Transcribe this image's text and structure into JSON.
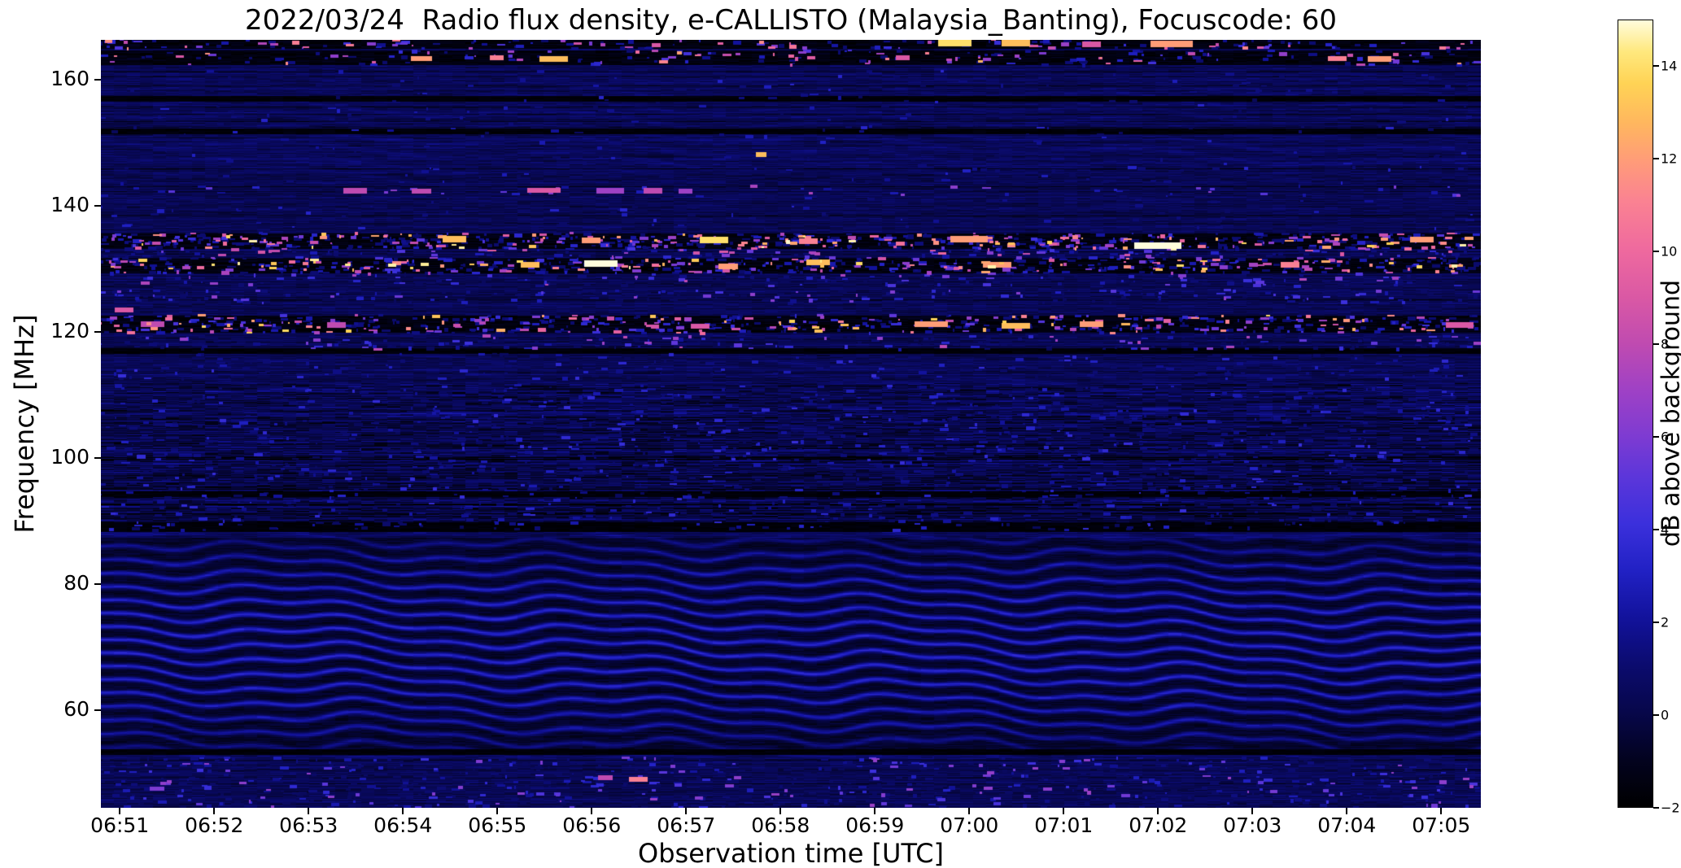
{
  "chart_data": {
    "type": "heatmap",
    "title": "2022/03/24  Radio flux density, e-CALLISTO (Malaysia_Banting), Focuscode: 60",
    "xlabel": "Observation time [UTC]",
    "ylabel": "Frequency [MHz]",
    "colorbar_label": "dB above background",
    "x_ticks": [
      {
        "label": "06:51",
        "t": 0
      },
      {
        "label": "06:52",
        "t": 1
      },
      {
        "label": "06:53",
        "t": 2
      },
      {
        "label": "06:54",
        "t": 3
      },
      {
        "label": "06:55",
        "t": 4
      },
      {
        "label": "06:56",
        "t": 5
      },
      {
        "label": "06:57",
        "t": 6
      },
      {
        "label": "06:58",
        "t": 7
      },
      {
        "label": "06:59",
        "t": 8
      },
      {
        "label": "07:00",
        "t": 9
      },
      {
        "label": "07:01",
        "t": 10
      },
      {
        "label": "07:02",
        "t": 11
      },
      {
        "label": "07:03",
        "t": 12
      },
      {
        "label": "07:04",
        "t": 13
      },
      {
        "label": "07:05",
        "t": 14
      }
    ],
    "y_ticks": [
      {
        "label": "60",
        "f": 60
      },
      {
        "label": "80",
        "f": 80
      },
      {
        "label": "100",
        "f": 100
      },
      {
        "label": "120",
        "f": 120
      },
      {
        "label": "140",
        "f": 140
      },
      {
        "label": "160",
        "f": 160
      }
    ],
    "colorbar_ticks": [
      {
        "label": "−2",
        "v": -2
      },
      {
        "label": "0",
        "v": 0
      },
      {
        "label": "2",
        "v": 2
      },
      {
        "label": "4",
        "v": 4
      },
      {
        "label": "6",
        "v": 6
      },
      {
        "label": "8",
        "v": 8
      },
      {
        "label": "10",
        "v": 10
      },
      {
        "label": "12",
        "v": 12
      },
      {
        "label": "14",
        "v": 14
      }
    ],
    "freq_range": [
      44.5,
      166.3
    ],
    "time_range_min": [
      -0.2,
      14.42
    ],
    "value_range": [
      -2,
      15
    ],
    "colorbar_range": [
      -2,
      15
    ],
    "colormap_stops": [
      [
        0.0,
        "#000000"
      ],
      [
        0.06,
        "#03031f"
      ],
      [
        0.12,
        "#07074a"
      ],
      [
        0.18,
        "#0b0b6e"
      ],
      [
        0.24,
        "#12129b"
      ],
      [
        0.3,
        "#2121c4"
      ],
      [
        0.36,
        "#3b30dc"
      ],
      [
        0.42,
        "#5c36da"
      ],
      [
        0.47,
        "#7d3bd2"
      ],
      [
        0.53,
        "#9f41c5"
      ],
      [
        0.59,
        "#c04bb0"
      ],
      [
        0.65,
        "#db59a4"
      ],
      [
        0.71,
        "#ef6a9e"
      ],
      [
        0.77,
        "#fa8292"
      ],
      [
        0.82,
        "#ff9b79"
      ],
      [
        0.87,
        "#ffb75e"
      ],
      [
        0.92,
        "#ffd355"
      ],
      [
        0.96,
        "#ffe87d"
      ],
      [
        1.0,
        "#fffcdc"
      ]
    ],
    "features_summary": [
      "Dark RFI lanes with intermittent bright bursts (pink/yellow/white, up to ~15 dB) near 120-122, 129-136 and 162-166 MHz",
      "Sporadic pink RFI dashes near 142 MHz and a bright point near 148 MHz around 06:58",
      "Wavy diagonal interference fringes (blue, ~2-3 dB) between ~52 and 88 MHz",
      "Mottled streaky FM-broadcast noise between ~88 and 112 MHz with several dark horizontal lines",
      "Quiet background ~0-1 dB (dark navy blue) elsewhere"
    ],
    "render": {
      "seed": 7,
      "base": 0.35,
      "fm_base": 0.05,
      "fm_range": [
        88.5,
        111.8
      ],
      "dark_bands": [
        [
          162.3,
          164.6
        ],
        [
          164.9,
          166.35
        ],
        [
          133.2,
          135.6
        ],
        [
          129.3,
          131.6
        ],
        [
          119.8,
          122.6
        ]
      ],
      "dark_lines": [
        157.0,
        151.8,
        116.9,
        94.3,
        89.4,
        88.7,
        53.3
      ],
      "ripples": [
        {
          "f": [
            52.5,
            88.3
          ],
          "amp": 2.4
        },
        {
          "f": [
            143.5,
            160.5
          ],
          "amp": 0.55
        },
        {
          "f": [
            104.5,
            116.5
          ],
          "amp": 0.5
        }
      ],
      "kf": 2.85,
      "kt": 1.75,
      "w1": 2.3,
      "wt1": 2.1,
      "wf1": 0.09,
      "w2": 1.2,
      "wt2": 5.7,
      "wf2": 0.05,
      "rfi_bands": [
        {
          "f": [
            164.9,
            166.3
          ],
          "density": 0.5,
          "v": [
            1,
            12
          ],
          "bias": 2.2
        },
        {
          "f": [
            162.3,
            164.6
          ],
          "density": 0.35,
          "v": [
            1,
            13
          ],
          "bias": 2.8
        },
        {
          "f": [
            141.6,
            143.2
          ],
          "density": 0.12,
          "v": [
            2,
            9
          ],
          "bias": 2.0
        },
        {
          "f": [
            133.2,
            135.6
          ],
          "density": 1.1,
          "v": [
            1,
            15
          ],
          "bias": 3.2
        },
        {
          "f": [
            131.6,
            133.2
          ],
          "density": 0.5,
          "v": [
            1,
            10
          ],
          "bias": 3.0
        },
        {
          "f": [
            129.3,
            131.6
          ],
          "density": 1.0,
          "v": [
            1,
            15
          ],
          "bias": 3.2
        },
        {
          "f": [
            127.3,
            129.3
          ],
          "density": 0.35,
          "v": [
            0.5,
            8
          ],
          "bias": 3.0
        },
        {
          "f": [
            124.6,
            126.6
          ],
          "density": 0.45,
          "v": [
            0.5,
            7
          ],
          "bias": 2.5
        },
        {
          "f": [
            119.8,
            122.6
          ],
          "density": 0.85,
          "v": [
            1,
            14
          ],
          "bias": 3.0
        },
        {
          "f": [
            117.2,
            119.4
          ],
          "density": 0.4,
          "v": [
            0.5,
            8
          ],
          "bias": 3.0
        },
        {
          "f": [
            112.5,
            116.5
          ],
          "density": 0.18,
          "v": [
            0.5,
            4
          ],
          "bias": 2.0
        },
        {
          "f": [
            88.5,
            111.5
          ],
          "density": 0.22,
          "v": [
            0.5,
            4
          ],
          "bias": 2.0
        },
        {
          "f": [
            143.5,
            161.5
          ],
          "density": 0.06,
          "v": [
            0.5,
            3.5
          ],
          "bias": 2.0
        },
        {
          "f": [
            136.0,
            141.5
          ],
          "density": 0.06,
          "v": [
            0.5,
            3.5
          ],
          "bias": 2.0
        },
        {
          "f": [
            44.5,
            52.5
          ],
          "density": 0.4,
          "v": [
            0.5,
            7
          ],
          "bias": 3.2
        }
      ],
      "hot_spots": [
        [
          8.85,
          165.7,
          0.35,
          1.0,
          14
        ],
        [
          9.5,
          165.7,
          0.3,
          1.0,
          13
        ],
        [
          11.15,
          165.6,
          0.45,
          1.0,
          12
        ],
        [
          10.3,
          165.5,
          0.2,
          0.9,
          9
        ],
        [
          3.2,
          163.3,
          0.22,
          0.8,
          12
        ],
        [
          4.0,
          163.4,
          0.15,
          0.8,
          11
        ],
        [
          4.6,
          163.2,
          0.3,
          0.8,
          13
        ],
        [
          8.3,
          163.4,
          0.15,
          0.8,
          9
        ],
        [
          12.9,
          163.3,
          0.2,
          0.8,
          11
        ],
        [
          13.35,
          163.2,
          0.25,
          0.8,
          12
        ],
        [
          6.8,
          148.0,
          0.12,
          0.8,
          13
        ],
        [
          2.5,
          142.3,
          0.25,
          0.8,
          8
        ],
        [
          3.2,
          142.2,
          0.2,
          0.8,
          8
        ],
        [
          4.5,
          142.4,
          0.35,
          0.8,
          9
        ],
        [
          5.2,
          142.3,
          0.3,
          0.8,
          7
        ],
        [
          5.65,
          142.3,
          0.2,
          0.8,
          8
        ],
        [
          6.0,
          142.2,
          0.15,
          0.8,
          7
        ],
        [
          3.55,
          134.6,
          0.25,
          1.0,
          13
        ],
        [
          5.0,
          134.4,
          0.2,
          0.9,
          12
        ],
        [
          6.3,
          134.5,
          0.3,
          1.0,
          14
        ],
        [
          7.3,
          134.3,
          0.2,
          0.9,
          11
        ],
        [
          9.0,
          134.6,
          0.4,
          1.0,
          12
        ],
        [
          11.0,
          133.6,
          0.5,
          1.1,
          15
        ],
        [
          13.8,
          134.5,
          0.25,
          0.9,
          12
        ],
        [
          4.35,
          130.6,
          0.2,
          0.9,
          13
        ],
        [
          5.1,
          130.8,
          0.35,
          1.0,
          15
        ],
        [
          6.45,
          130.3,
          0.2,
          0.9,
          12
        ],
        [
          7.4,
          130.9,
          0.25,
          0.9,
          13
        ],
        [
          9.3,
          130.5,
          0.3,
          0.9,
          12
        ],
        [
          12.4,
          130.6,
          0.2,
          0.9,
          11
        ],
        [
          0.05,
          123.4,
          0.2,
          0.9,
          9
        ],
        [
          0.35,
          121.2,
          0.25,
          0.9,
          8
        ],
        [
          2.3,
          121.0,
          0.2,
          0.8,
          8
        ],
        [
          6.15,
          120.8,
          0.2,
          0.8,
          9
        ],
        [
          8.6,
          121.1,
          0.35,
          0.9,
          12
        ],
        [
          9.5,
          120.9,
          0.3,
          0.9,
          13
        ],
        [
          10.3,
          121.2,
          0.25,
          0.9,
          12
        ],
        [
          14.2,
          121.0,
          0.3,
          0.9,
          9
        ],
        [
          5.15,
          49.2,
          0.15,
          0.8,
          8
        ],
        [
          5.5,
          48.9,
          0.2,
          0.8,
          11
        ],
        [
          0.4,
          47.5,
          0.15,
          0.7,
          6
        ]
      ]
    }
  }
}
